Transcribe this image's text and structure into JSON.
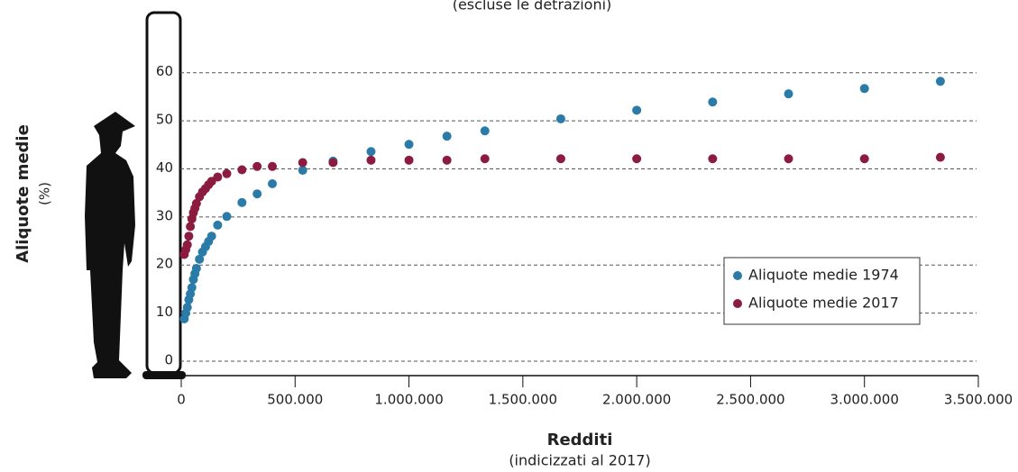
{
  "chart_data": {
    "type": "scatter",
    "subtitle": "(escluse le detrazioni)",
    "y_label": "Aliquote medie",
    "y_unit": "(%)",
    "x_label": "Redditi",
    "x_sublabel": "(indicizzati al 2017)",
    "xlim": [
      0,
      3500000
    ],
    "ylim": [
      -3,
      65
    ],
    "xticks": [
      0,
      {
        "value": 500000,
        "label": "500.000"
      },
      {
        "value": 1000000,
        "label": "1.000.000"
      },
      {
        "value": 1500000,
        "label": "1.500.000"
      },
      {
        "value": 2000000,
        "label": "2.000.000"
      },
      {
        "value": 2500000,
        "label": "2.500.000"
      },
      {
        "value": 3000000,
        "label": "3.000.000"
      },
      {
        "value": 3500000,
        "label": "3.500.000"
      }
    ],
    "yticks": [
      0,
      10,
      20,
      30,
      40,
      50,
      60
    ],
    "grid": true,
    "legend": "right",
    "x": [
      13333,
      20000,
      26667,
      33333,
      40000,
      46667,
      53333,
      60000,
      66667,
      80000,
      93333,
      106667,
      120000,
      133333,
      160000,
      200000,
      266667,
      333333,
      400000,
      533333,
      666667,
      833333,
      1000000,
      1166667,
      1333333,
      1666667,
      2000000,
      2333333,
      2666667,
      3000000,
      3333333
    ],
    "series": [
      {
        "name": "Aliquote medie 1974",
        "color": "#2b7ba8",
        "values": [
          8.8,
          10.0,
          11.2,
          12.8,
          14.0,
          15.3,
          17.0,
          18.2,
          19.3,
          21.2,
          22.7,
          23.8,
          24.9,
          26.0,
          28.3,
          30.1,
          33.0,
          34.8,
          36.9,
          39.7,
          41.6,
          43.6,
          45.1,
          46.8,
          47.9,
          50.4,
          52.2,
          53.9,
          55.6,
          56.7,
          58.2
        ]
      },
      {
        "name": "Aliquote medie 2017",
        "color": "#8c1b40",
        "values": [
          22.2,
          23.2,
          24.2,
          26.0,
          28.0,
          29.6,
          30.9,
          31.8,
          32.8,
          34.2,
          35.2,
          35.9,
          36.7,
          37.4,
          38.3,
          39.0,
          39.8,
          40.5,
          40.5,
          41.3,
          41.3,
          41.8,
          41.8,
          41.8,
          42.1,
          42.1,
          42.1,
          42.1,
          42.1,
          42.1,
          42.4
        ]
      }
    ]
  }
}
